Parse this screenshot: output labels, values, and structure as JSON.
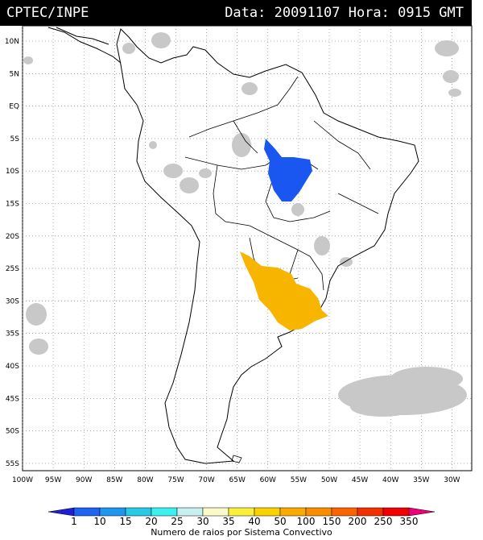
{
  "header": {
    "left": "CPTEC/INPE",
    "right": "Data: 20091107 Hora: 0915 GMT"
  },
  "map": {
    "lat_labels": [
      "10N",
      "5N",
      "EQ",
      "5S",
      "10S",
      "15S",
      "20S",
      "25S",
      "30S",
      "35S",
      "40S",
      "45S",
      "50S",
      "55S"
    ],
    "lon_labels": [
      "100W",
      "95W",
      "90W",
      "85W",
      "80W",
      "75W",
      "70W",
      "65W",
      "60W",
      "55W",
      "50W",
      "45W",
      "40W",
      "35W",
      "30W"
    ],
    "features": {
      "cloud_color": "#c8c8c8",
      "blue_system_color": "#1a56f0",
      "orange_system_color": "#f7b500"
    }
  },
  "colorbar": {
    "ticks": [
      "1",
      "10",
      "15",
      "20",
      "25",
      "30",
      "35",
      "40",
      "50",
      "100",
      "150",
      "200",
      "250",
      "350"
    ],
    "colors": [
      "#1f1fd6",
      "#1e64f0",
      "#1e96f0",
      "#28c8e6",
      "#3cf0f0",
      "#c8f0f0",
      "#fafac8",
      "#faf03c",
      "#fad200",
      "#faaa00",
      "#fa8c00",
      "#fa6400",
      "#f03200",
      "#f00000",
      "#f00078"
    ],
    "title": "Numero de raios por Sistema Convectivo"
  }
}
